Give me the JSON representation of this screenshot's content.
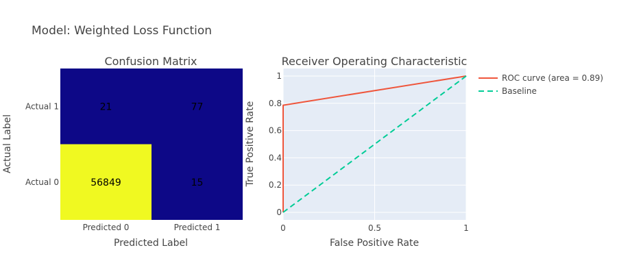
{
  "figure": {
    "title": "Model: Weighted Loss Function"
  },
  "chart_data": [
    {
      "type": "heatmap",
      "title": "Confusion Matrix",
      "xlabel": "Predicted Label",
      "ylabel": "Actual Label",
      "x_categories": [
        "Predicted 0",
        "Predicted 1"
      ],
      "y_categories": [
        "Actual 0",
        "Actual 1"
      ],
      "values": [
        [
          56849,
          15
        ],
        [
          21,
          77
        ]
      ],
      "colorscale": [
        "#0d0887",
        "#f0f921"
      ]
    },
    {
      "type": "line",
      "title": "Receiver Operating Characteristic",
      "xlabel": "False Positive Rate",
      "ylabel": "True Positive Rate",
      "xlim": [
        0,
        1
      ],
      "ylim": [
        0,
        1
      ],
      "x_ticks": [
        0,
        0.5,
        1
      ],
      "y_ticks": [
        0,
        0.2,
        0.4,
        0.6,
        0.8,
        1
      ],
      "x_tick_labels": [
        "0",
        "0.5",
        "1"
      ],
      "y_tick_labels": [
        "0",
        "0.2",
        "0.4",
        "0.6",
        "0.8",
        "1"
      ],
      "grid": true,
      "legend_position": "right",
      "series": [
        {
          "name": "ROC curve (area = 0.89)",
          "color": "#ef553b",
          "dash": "solid",
          "x": [
            0,
            0,
            0.0003,
            1
          ],
          "y": [
            0,
            0.78,
            0.786,
            1
          ]
        },
        {
          "name": "Baseline",
          "color": "#00cc96",
          "dash": "dash",
          "x": [
            0,
            1
          ],
          "y": [
            0,
            1
          ]
        }
      ]
    }
  ]
}
